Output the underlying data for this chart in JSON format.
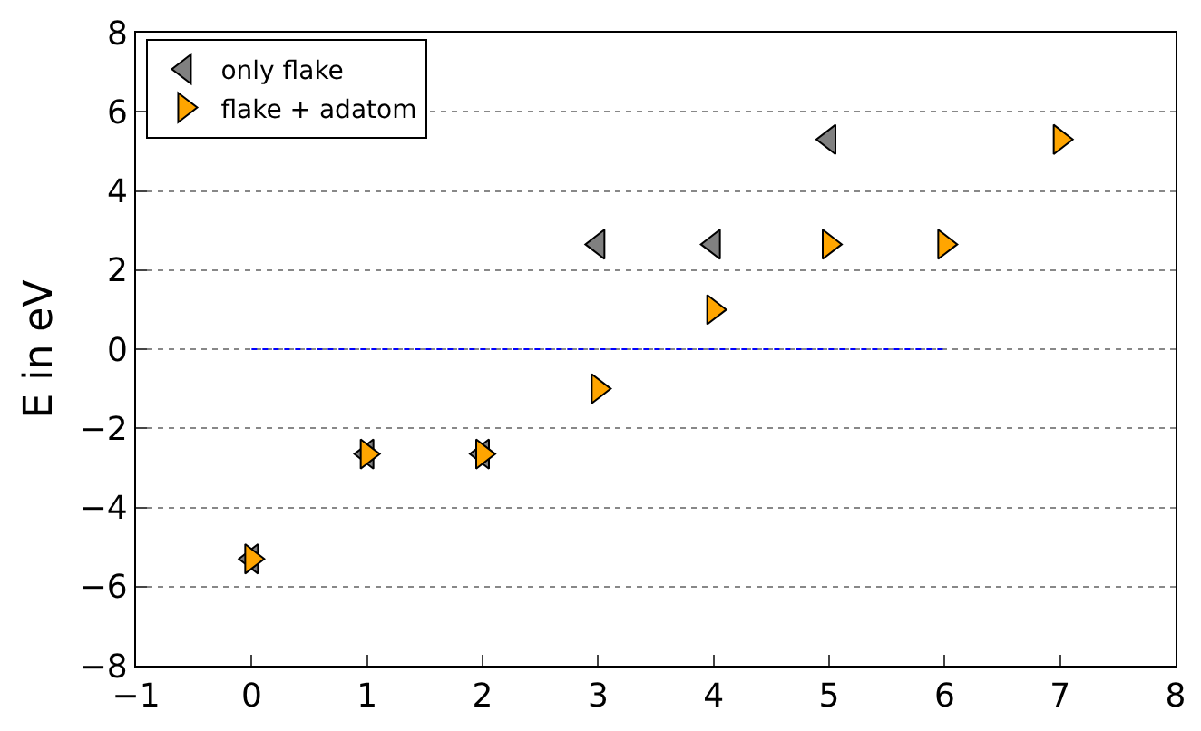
{
  "chart_data": {
    "type": "scatter",
    "ylabel": "E in eV",
    "xlim": [
      -1,
      8
    ],
    "xticks": [
      {
        "value": -1,
        "label": "−1"
      },
      0,
      1,
      2,
      3,
      4,
      5,
      6,
      7,
      8
    ],
    "ylim": [
      -8,
      8
    ],
    "yticks": [
      {
        "value": -8,
        "label": "−8"
      },
      {
        "value": -6,
        "label": "−6"
      },
      {
        "value": -4,
        "label": "−4"
      },
      {
        "value": -2,
        "label": "−2"
      },
      0,
      2,
      4,
      6,
      8
    ],
    "grid": "y",
    "legend": "top left",
    "series": [
      {
        "name": "only flake",
        "color": "#808080",
        "marker": "triangle-left",
        "x": [
          0,
          1,
          2,
          3,
          4,
          5
        ],
        "values": [
          -5.3,
          -2.65,
          -2.65,
          2.65,
          2.65,
          5.3
        ]
      },
      {
        "name": "flake + adatom",
        "color": "#ffa500",
        "marker": "triangle-right",
        "x": [
          0,
          1,
          2,
          3,
          4,
          5,
          6,
          7
        ],
        "values": [
          -5.3,
          -2.65,
          -2.65,
          -1,
          1,
          2.65,
          2.65,
          5.3
        ]
      },
      {
        "type": "line",
        "color": "#0000ff",
        "line_style": "dotted",
        "x": [
          0,
          6
        ],
        "values": [
          0,
          0
        ]
      }
    ]
  }
}
